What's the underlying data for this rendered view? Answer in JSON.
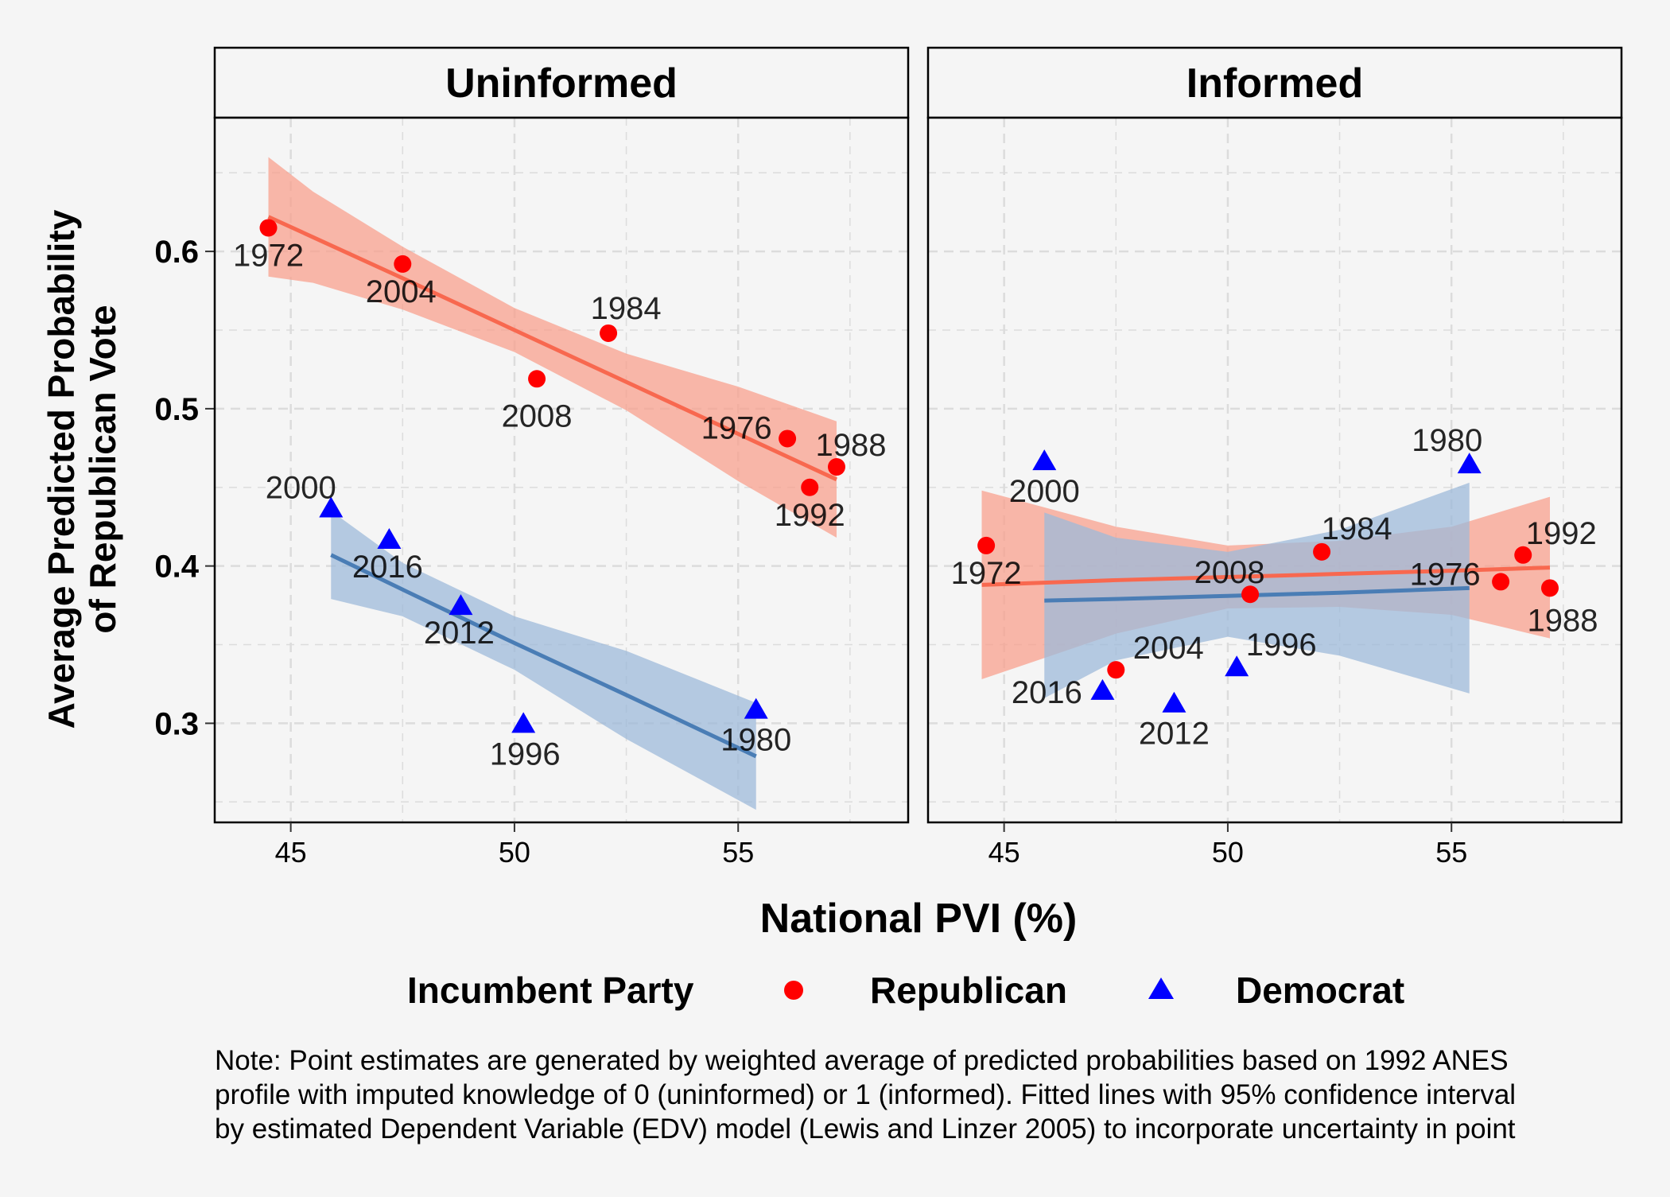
{
  "chart_data": {
    "type": "scatter",
    "ylabel_lines": [
      "Average Predicted Probability",
      "of Republican Vote"
    ],
    "xlabel": "National PVI (%)",
    "xlim": [
      43.3,
      58.8
    ],
    "ylim": [
      0.237,
      0.685
    ],
    "x_ticks": [
      45,
      50,
      55
    ],
    "x_minor_ticks": [
      47.5,
      52.5,
      57.5
    ],
    "y_ticks": [
      0.3,
      0.4,
      0.5,
      0.6
    ],
    "y_minor_ticks": [
      0.25,
      0.35,
      0.45,
      0.55,
      0.65
    ],
    "y_tick_labels": [
      "0.3",
      "0.4",
      "0.5",
      "0.6"
    ],
    "x_tick_labels": [
      "45",
      "50",
      "55"
    ],
    "grid": true,
    "colors": {
      "republican_point": "#ff0000",
      "democrat_point": "#0000ff",
      "republican_line": "#f8684f",
      "republican_band": "#f8a08d",
      "democrat_line": "#4a7db5",
      "democrat_band": "#9dbad9",
      "background": "#f5f5f5",
      "grid": "#dcdcdc"
    },
    "legend": {
      "title": "Incumbent Party",
      "position": "bottom",
      "entries": [
        {
          "label": "Republican",
          "shape": "circle",
          "color": "#ff0000"
        },
        {
          "label": "Democrat",
          "shape": "triangle",
          "color": "#0000ff"
        }
      ]
    },
    "panels": [
      {
        "title": "Uninformed",
        "republican_points": [
          {
            "x": 44.5,
            "y": 0.615,
            "label": "1972"
          },
          {
            "x": 47.5,
            "y": 0.592,
            "label": "2004"
          },
          {
            "x": 52.1,
            "y": 0.548,
            "label": "1984"
          },
          {
            "x": 50.5,
            "y": 0.519,
            "label": "2008"
          },
          {
            "x": 56.1,
            "y": 0.481,
            "label": "1976"
          },
          {
            "x": 57.2,
            "y": 0.463,
            "label": "1988"
          },
          {
            "x": 56.6,
            "y": 0.45,
            "label": "1992"
          }
        ],
        "democrat_points": [
          {
            "x": 45.9,
            "y": 0.437,
            "label": "2000"
          },
          {
            "x": 47.2,
            "y": 0.417,
            "label": "2016"
          },
          {
            "x": 48.8,
            "y": 0.375,
            "label": "2012"
          },
          {
            "x": 50.2,
            "y": 0.3,
            "label": "1996"
          },
          {
            "x": 55.4,
            "y": 0.309,
            "label": "1980"
          }
        ],
        "republican_fit": {
          "x": [
            44.5,
            45.5,
            47.5,
            50.0,
            52.5,
            55.0,
            57.2
          ],
          "y": [
            0.622,
            0.609,
            0.583,
            0.55,
            0.517,
            0.484,
            0.455
          ],
          "lower": [
            0.584,
            0.58,
            0.563,
            0.536,
            0.499,
            0.454,
            0.418
          ],
          "upper": [
            0.66,
            0.638,
            0.603,
            0.564,
            0.535,
            0.514,
            0.492
          ]
        },
        "democrat_fit": {
          "x": [
            45.9,
            47.5,
            50.0,
            52.5,
            55.4
          ],
          "y": [
            0.407,
            0.385,
            0.351,
            0.318,
            0.279
          ],
          "lower": [
            0.379,
            0.368,
            0.334,
            0.29,
            0.245
          ],
          "upper": [
            0.435,
            0.402,
            0.368,
            0.346,
            0.313
          ]
        }
      },
      {
        "title": "Informed",
        "republican_points": [
          {
            "x": 44.6,
            "y": 0.413,
            "label": "1972"
          },
          {
            "x": 47.5,
            "y": 0.334,
            "label": "2004"
          },
          {
            "x": 52.1,
            "y": 0.409,
            "label": "1984"
          },
          {
            "x": 50.5,
            "y": 0.382,
            "label": "2008"
          },
          {
            "x": 56.1,
            "y": 0.39,
            "label": "1976"
          },
          {
            "x": 57.2,
            "y": 0.386,
            "label": "1988"
          },
          {
            "x": 56.6,
            "y": 0.407,
            "label": "1992"
          }
        ],
        "democrat_points": [
          {
            "x": 45.9,
            "y": 0.467,
            "label": "2000"
          },
          {
            "x": 47.2,
            "y": 0.321,
            "label": "2016"
          },
          {
            "x": 48.8,
            "y": 0.313,
            "label": "2012"
          },
          {
            "x": 50.2,
            "y": 0.336,
            "label": "1996"
          },
          {
            "x": 55.4,
            "y": 0.465,
            "label": "1980"
          }
        ],
        "republican_fit": {
          "x": [
            44.5,
            47.5,
            50.0,
            52.5,
            55.0,
            57.2
          ],
          "y": [
            0.388,
            0.391,
            0.393,
            0.395,
            0.397,
            0.399
          ],
          "lower": [
            0.328,
            0.357,
            0.373,
            0.374,
            0.369,
            0.354
          ],
          "upper": [
            0.448,
            0.425,
            0.413,
            0.416,
            0.425,
            0.444
          ]
        },
        "democrat_fit": {
          "x": [
            45.9,
            47.5,
            50.0,
            52.5,
            55.4
          ],
          "y": [
            0.378,
            0.379,
            0.381,
            0.383,
            0.386
          ],
          "lower": [
            0.316,
            0.34,
            0.355,
            0.343,
            0.319
          ],
          "upper": [
            0.434,
            0.418,
            0.409,
            0.423,
            0.453
          ]
        }
      }
    ]
  },
  "note": {
    "lines": [
      "Note: Point estimates are generated by weighted average of predicted probabilities based on 1992 ANES",
      "profile with imputed knowledge of 0 (uninformed) or 1 (informed). Fitted lines with 95% confidence interval",
      "by estimated Dependent Variable (EDV) model (Lewis and Linzer 2005) to incorporate uncertainty in point"
    ]
  }
}
